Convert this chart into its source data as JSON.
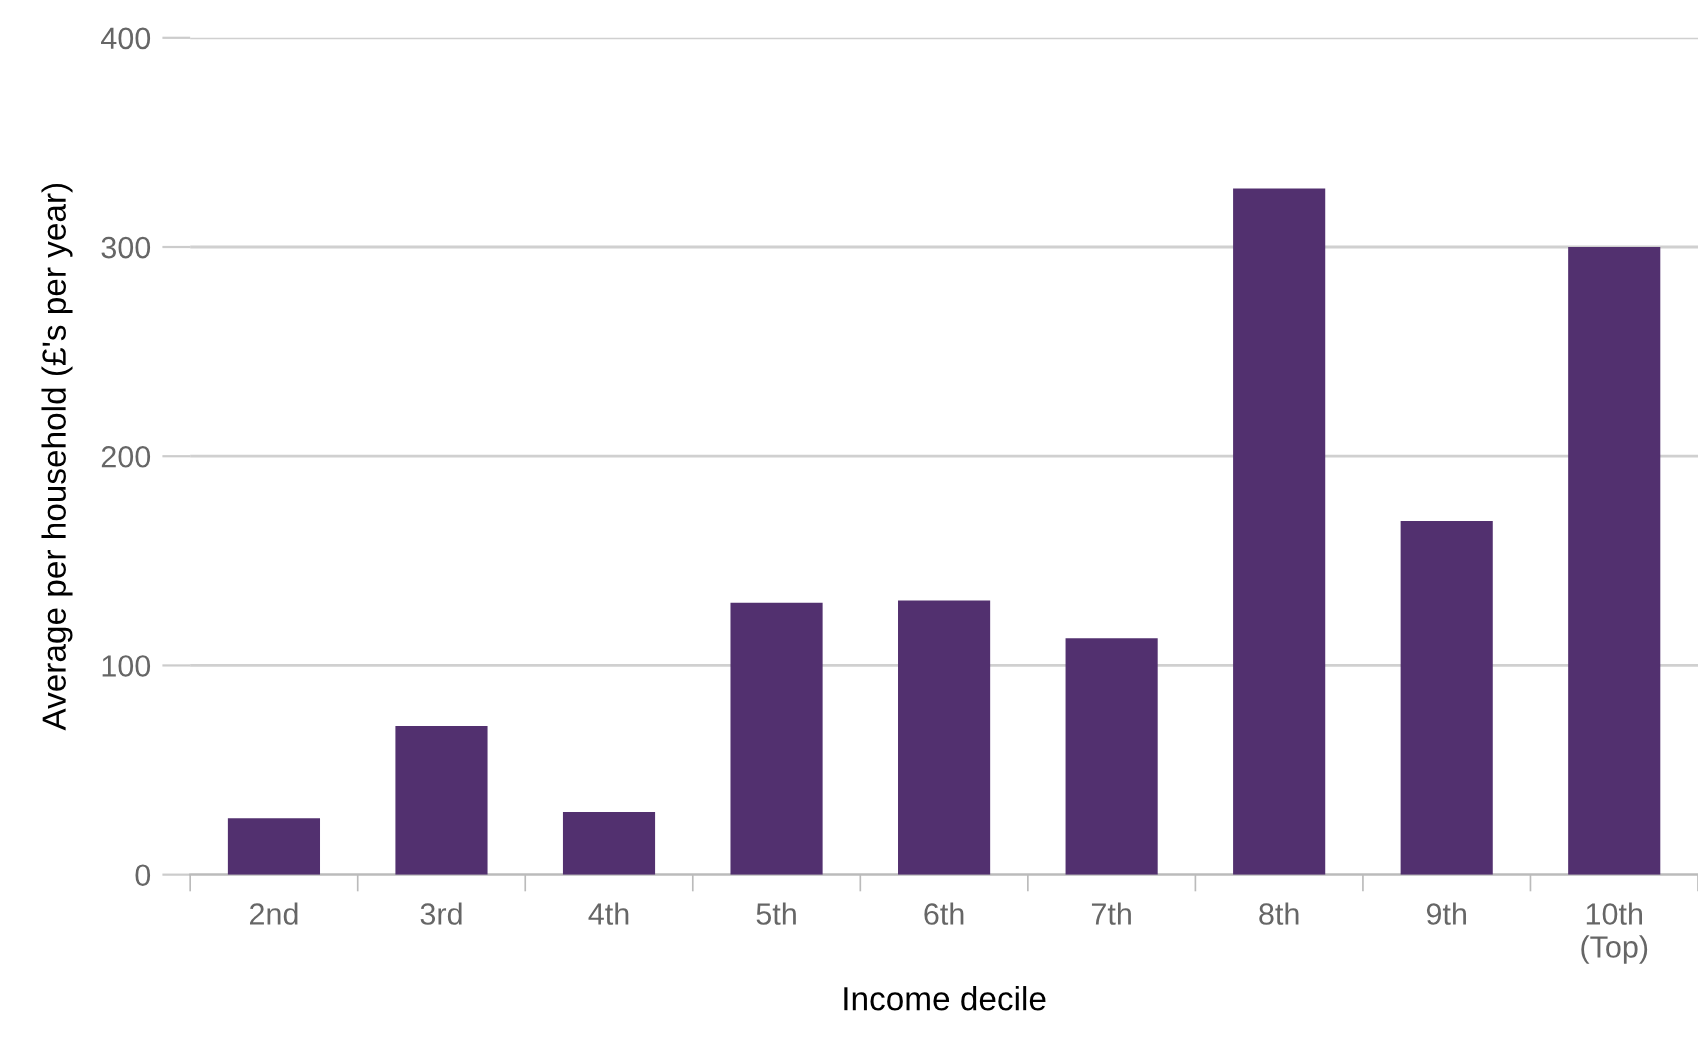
{
  "chart_data": {
    "type": "bar",
    "xlabel": "Income decile",
    "ylabel": "Average per household (£'s per year)",
    "categories": [
      "2nd",
      "3rd",
      "4th",
      "5th",
      "6th",
      "7th",
      "8th",
      "9th",
      "10th\n(Top)"
    ],
    "values": [
      27,
      71,
      30,
      130,
      131,
      113,
      328,
      169,
      300
    ],
    "color": "#52306f",
    "ylim": [
      0,
      400
    ],
    "yticks": [
      0,
      100,
      200,
      300,
      400
    ],
    "grid": "y"
  }
}
